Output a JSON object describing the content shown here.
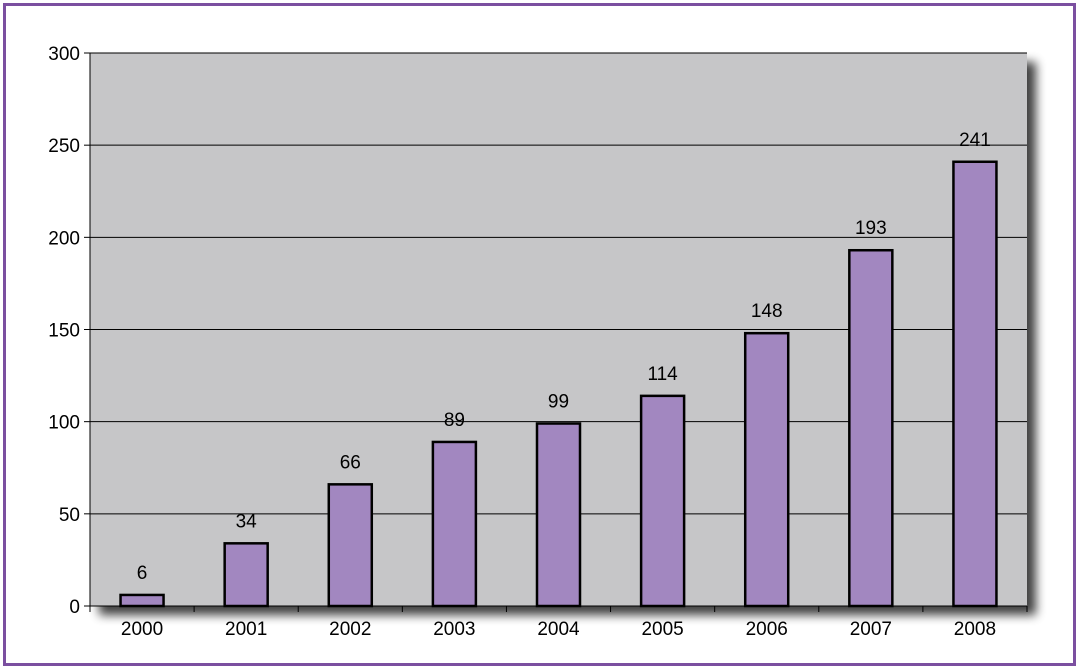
{
  "chart_data": {
    "type": "bar",
    "title": "",
    "xlabel": "",
    "ylabel": "",
    "categories": [
      "2000",
      "2001",
      "2002",
      "2003",
      "2004",
      "2005",
      "2006",
      "2007",
      "2008"
    ],
    "values": [
      6,
      34,
      66,
      89,
      99,
      114,
      148,
      193,
      241
    ],
    "ylim": [
      0,
      300
    ],
    "yticks": [
      0,
      50,
      100,
      150,
      200,
      250,
      300
    ],
    "grid": true,
    "legend": "none",
    "colors": {
      "bar_fill": "#a287c0",
      "bar_stroke": "#000000",
      "plot_background": "#c6c6c8",
      "frame_border": "#7b4fa0",
      "gridline": "#000000"
    }
  }
}
